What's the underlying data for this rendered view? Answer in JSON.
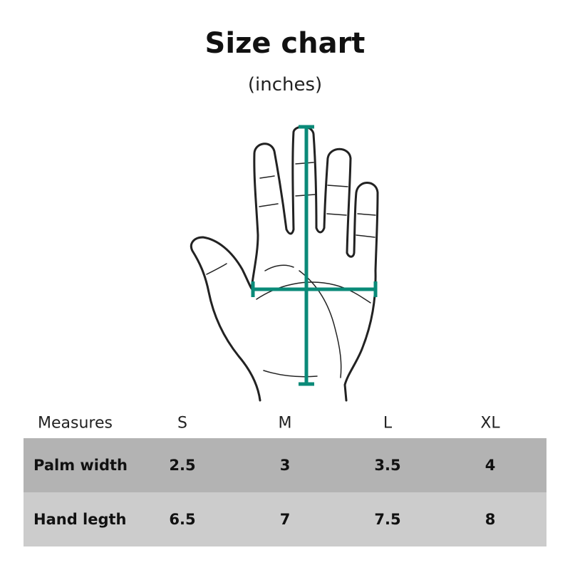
{
  "title": "Size chart",
  "subtitle": "(inches)",
  "accent_color": "#0a8a78",
  "illustration": "hand-with-measurement-lines",
  "table": {
    "headers": [
      "Measures",
      "S",
      "M",
      "L",
      "XL"
    ],
    "rows": [
      {
        "label": "Palm width",
        "values": [
          "2.5",
          "3",
          "3.5",
          "4"
        ]
      },
      {
        "label": "Hand legth",
        "values": [
          "6.5",
          "7",
          "7.5",
          "8"
        ]
      }
    ]
  }
}
